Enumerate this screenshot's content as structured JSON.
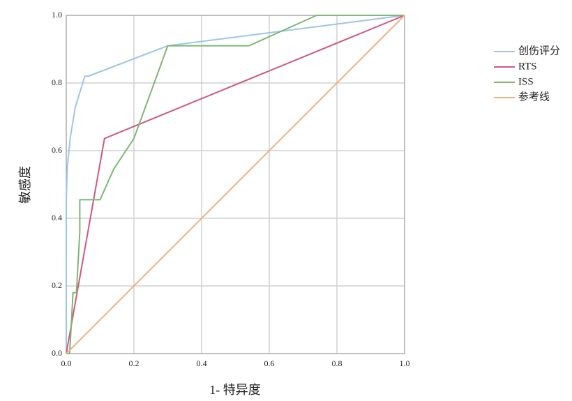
{
  "chart_data": {
    "type": "line",
    "xlabel": "1- 特异度",
    "ylabel": "敏感度",
    "xlim": [
      0,
      1
    ],
    "ylim": [
      0,
      1
    ],
    "xticks": [
      {
        "value": 0,
        "label": "0.0"
      },
      0.2,
      0.4,
      0.6,
      0.8,
      {
        "value": 1,
        "label": "1.0"
      }
    ],
    "yticks": [
      {
        "value": 0,
        "label": "0.0"
      },
      0.2,
      0.4,
      0.6,
      0.8,
      {
        "value": 1,
        "label": "1.0"
      }
    ],
    "grid": true,
    "legend": "right",
    "series": [
      {
        "name": "创伤评分",
        "color": "#9ec5e8",
        "x": [
          0,
          0,
          0.003,
          0.012,
          0.027,
          0.055,
          0.065,
          0.3,
          1
        ],
        "values": [
          0,
          0.45,
          0.55,
          0.64,
          0.73,
          0.82,
          0.82,
          0.91,
          1
        ]
      },
      {
        "name": "RTS",
        "color": "#d0587e",
        "x": [
          0,
          0.113,
          1
        ],
        "values": [
          0,
          0.636,
          1
        ]
      },
      {
        "name": "ISS",
        "color": "#7cb870",
        "x": [
          0,
          0.01,
          0.015,
          0.02,
          0.03,
          0.04,
          0.04,
          0.1,
          0.14,
          0.2,
          0.3,
          0.54,
          0.74,
          1
        ],
        "values": [
          0,
          0,
          0.09,
          0.18,
          0.18,
          0.36,
          0.455,
          0.455,
          0.545,
          0.636,
          0.91,
          0.91,
          1,
          1
        ]
      },
      {
        "name": "参考线",
        "color": "#f0b080",
        "x": [
          0,
          1
        ],
        "values": [
          0,
          1
        ]
      }
    ]
  }
}
